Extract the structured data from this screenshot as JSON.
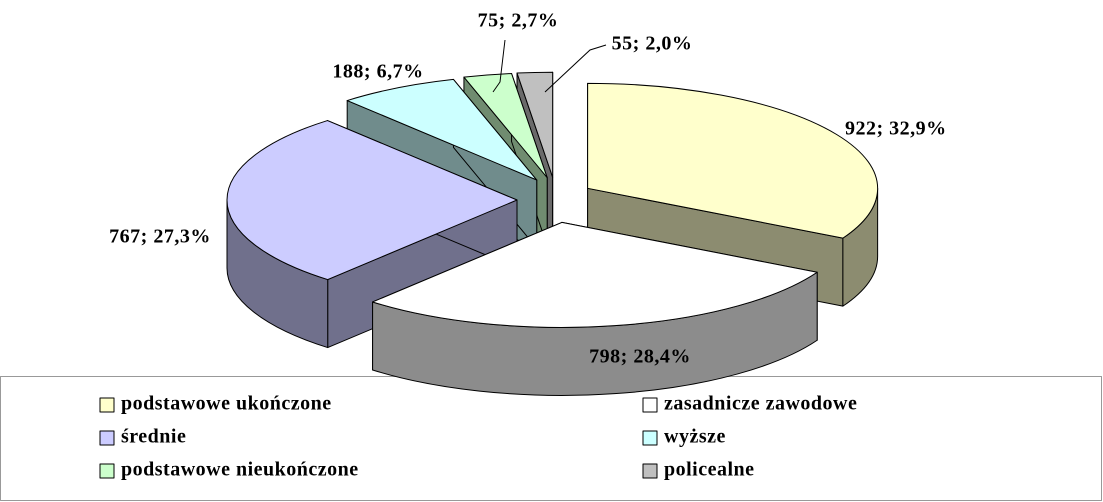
{
  "chart_data": {
    "type": "pie3d",
    "categories": [
      "podstawowe ukończone",
      "zasadnicze zawodowe",
      "średnie",
      "wyższe",
      "podstawowe nieukończone",
      "policealne"
    ],
    "values": [
      922,
      798,
      767,
      188,
      75,
      55
    ],
    "value_labels": [
      "922; 32,9%",
      "798; 28,4%",
      "767; 27,3%",
      "188; 6,7%",
      "75; 2,7%",
      "55; 2,0%"
    ],
    "colors": [
      "#FFFFCC",
      "#FFFFFF",
      "#CCCCFF",
      "#CCFFFF",
      "#CCFFCC",
      "#C0C0C0"
    ],
    "legend": "bottom"
  }
}
